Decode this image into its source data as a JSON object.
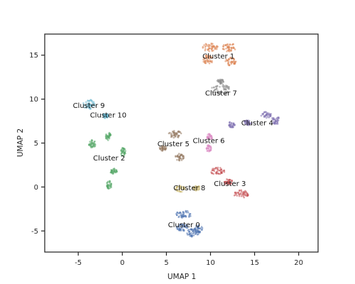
{
  "chart_data": {
    "type": "scatter",
    "title": "",
    "xlabel": "UMAP 1",
    "ylabel": "UMAP 2",
    "xlim": [
      -8.8,
      22.2
    ],
    "ylim": [
      -7.4,
      17.4
    ],
    "xticks": [
      -5,
      0,
      5,
      10,
      15,
      20
    ],
    "yticks": [
      -5,
      0,
      5,
      10,
      15
    ],
    "grid": false,
    "legend": "none",
    "series": [
      {
        "label": "Cluster 0",
        "color": "#4c72b0",
        "label_pos": [
          7.0,
          -4.3
        ],
        "blobs": [
          {
            "cx": 7.0,
            "cy": -3.1,
            "rx": 0.9,
            "ry": 0.45
          },
          {
            "cx": 6.8,
            "cy": -4.6,
            "rx": 0.7,
            "ry": 0.4
          },
          {
            "cx": 8.0,
            "cy": -5.2,
            "rx": 0.7,
            "ry": 0.45
          },
          {
            "cx": 8.6,
            "cy": -4.8,
            "rx": 0.5,
            "ry": 0.45
          }
        ]
      },
      {
        "label": "Cluster 1",
        "color": "#dd8452",
        "label_pos": [
          10.9,
          14.9
        ],
        "blobs": [
          {
            "cx": 10.0,
            "cy": 15.9,
            "rx": 0.9,
            "ry": 0.5
          },
          {
            "cx": 12.1,
            "cy": 15.9,
            "rx": 0.8,
            "ry": 0.5
          },
          {
            "cx": 9.7,
            "cy": 14.5,
            "rx": 0.6,
            "ry": 0.5
          },
          {
            "cx": 12.3,
            "cy": 14.3,
            "rx": 0.6,
            "ry": 0.5
          }
        ]
      },
      {
        "label": "Cluster 2",
        "color": "#55a868",
        "label_pos": [
          -1.5,
          3.3
        ],
        "blobs": [
          {
            "cx": -3.4,
            "cy": 4.9,
            "rx": 0.4,
            "ry": 0.5
          },
          {
            "cx": -1.6,
            "cy": 5.8,
            "rx": 0.3,
            "ry": 0.5
          },
          {
            "cx": 0.1,
            "cy": 4.0,
            "rx": 0.3,
            "ry": 0.5
          },
          {
            "cx": -1.0,
            "cy": 1.8,
            "rx": 0.4,
            "ry": 0.3
          },
          {
            "cx": -1.5,
            "cy": 0.2,
            "rx": 0.3,
            "ry": 0.5
          }
        ]
      },
      {
        "label": "Cluster 3",
        "color": "#c44e52",
        "label_pos": [
          12.2,
          0.4
        ],
        "blobs": [
          {
            "cx": 10.8,
            "cy": 1.8,
            "rx": 0.8,
            "ry": 0.45
          },
          {
            "cx": 13.5,
            "cy": -0.8,
            "rx": 0.9,
            "ry": 0.45
          },
          {
            "cx": 12.0,
            "cy": 0.6,
            "rx": 0.5,
            "ry": 0.35
          }
        ]
      },
      {
        "label": "Cluster 4",
        "color": "#8172b3",
        "label_pos": [
          15.3,
          7.3
        ],
        "blobs": [
          {
            "cx": 16.3,
            "cy": 8.2,
            "rx": 0.6,
            "ry": 0.35
          },
          {
            "cx": 17.4,
            "cy": 7.6,
            "rx": 0.5,
            "ry": 0.5
          },
          {
            "cx": 12.4,
            "cy": 7.1,
            "rx": 0.4,
            "ry": 0.35
          },
          {
            "cx": 14.2,
            "cy": 7.3,
            "rx": 0.5,
            "ry": 0.3
          }
        ]
      },
      {
        "label": "Cluster 5",
        "color": "#937860",
        "label_pos": [
          5.8,
          4.9
        ],
        "blobs": [
          {
            "cx": 6.0,
            "cy": 6.0,
            "rx": 0.8,
            "ry": 0.4
          },
          {
            "cx": 6.5,
            "cy": 3.4,
            "rx": 0.5,
            "ry": 0.4
          },
          {
            "cx": 4.6,
            "cy": 4.4,
            "rx": 0.4,
            "ry": 0.3
          }
        ]
      },
      {
        "label": "Cluster 6",
        "color": "#da8bc3",
        "label_pos": [
          9.8,
          5.3
        ],
        "blobs": [
          {
            "cx": 9.9,
            "cy": 5.7,
            "rx": 0.3,
            "ry": 0.4
          },
          {
            "cx": 9.8,
            "cy": 4.4,
            "rx": 0.3,
            "ry": 0.4
          }
        ]
      },
      {
        "label": "Cluster 7",
        "color": "#8c8c8c",
        "label_pos": [
          11.2,
          10.7
        ],
        "blobs": [
          {
            "cx": 11.2,
            "cy": 11.1,
            "rx": 1.1,
            "ry": 0.6
          },
          {
            "cx": 11.1,
            "cy": 12.0,
            "rx": 0.4,
            "ry": 0.3
          }
        ]
      },
      {
        "label": "Cluster 8",
        "color": "#ccb974",
        "label_pos": [
          7.6,
          -0.1
        ],
        "blobs": [
          {
            "cx": 6.6,
            "cy": -0.2,
            "rx": 0.6,
            "ry": 0.35
          },
          {
            "cx": 8.4,
            "cy": -0.1,
            "rx": 0.4,
            "ry": 0.3
          }
        ]
      },
      {
        "label": "Cluster 9",
        "color": "#64b5cd",
        "label_pos": [
          -3.8,
          9.3
        ],
        "blobs": [
          {
            "cx": -3.8,
            "cy": 9.4,
            "rx": 0.7,
            "ry": 0.55
          },
          {
            "cx": -1.9,
            "cy": 8.1,
            "rx": 0.3,
            "ry": 0.3
          }
        ]
      }
    ],
    "extra_labels": [
      {
        "text": "Cluster 10",
        "pos": [
          -1.6,
          8.2
        ]
      }
    ]
  }
}
